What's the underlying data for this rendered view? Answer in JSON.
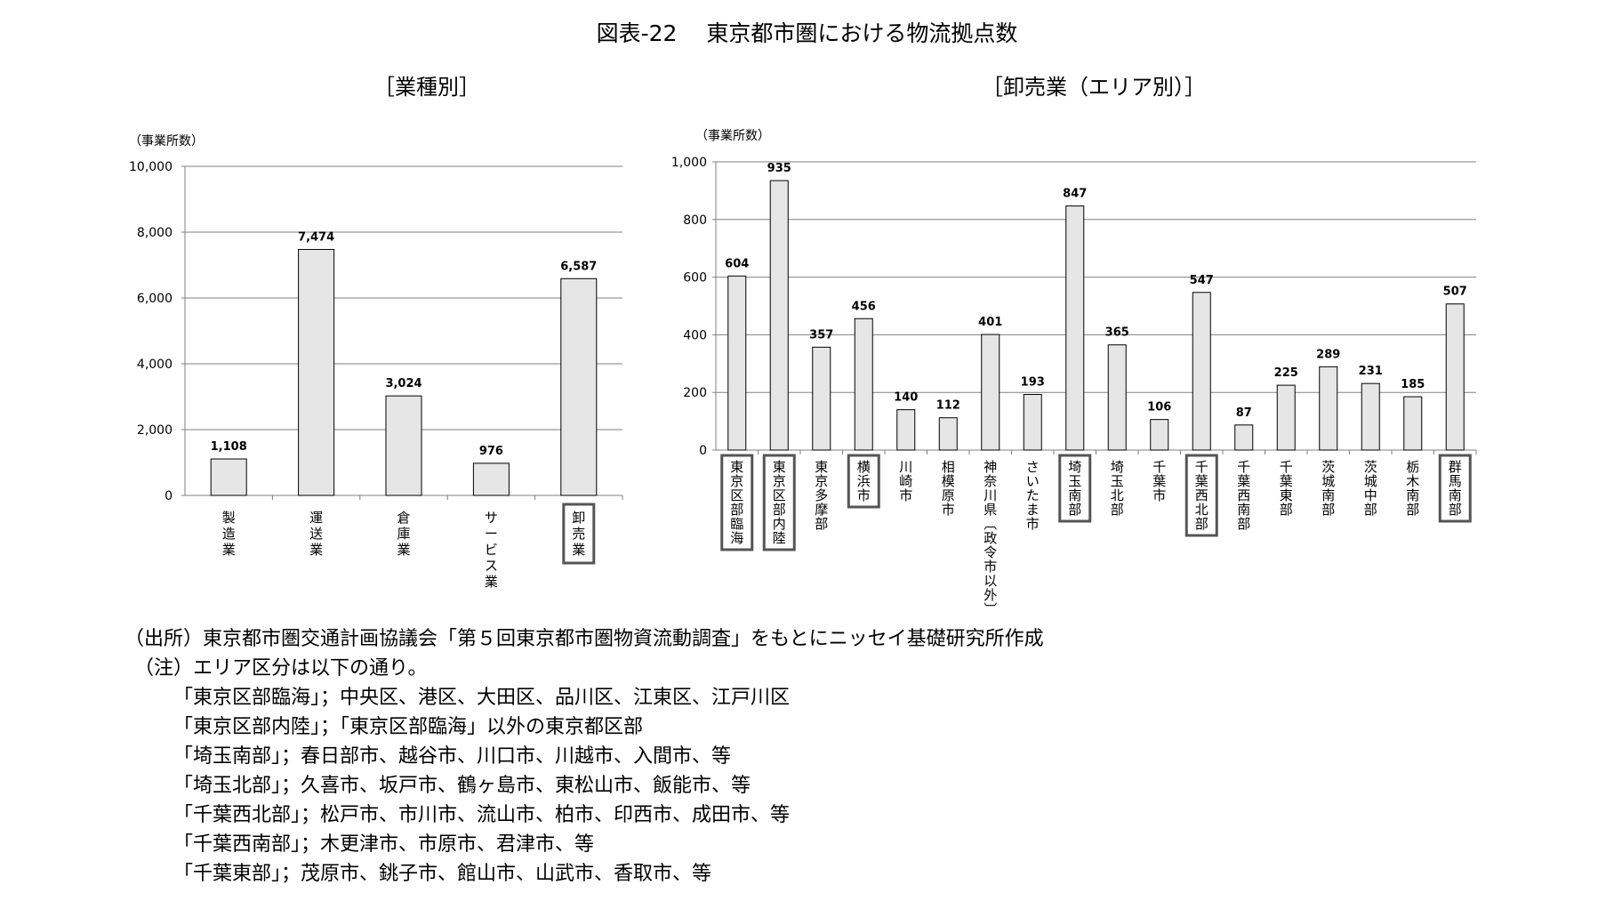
{
  "title": "図表-22　 東京都市圏における物流拠点数",
  "chart_data": [
    {
      "type": "bar",
      "title": "［業種別］",
      "ylabel": "（事業所数）",
      "ylim": [
        0,
        10000
      ],
      "yticks": [
        "0",
        "2,000",
        "4,000",
        "6,000",
        "8,000",
        "10,000"
      ],
      "categories": [
        "製造業",
        "運送業",
        "倉庫業",
        "サービス業",
        "卸売業"
      ],
      "values": [
        1108,
        7474,
        3024,
        976,
        6587
      ],
      "value_labels": [
        "1,108",
        "7,474",
        "3,024",
        "976",
        "6,587"
      ],
      "boxed": [
        false,
        false,
        false,
        false,
        true
      ],
      "grid": true,
      "bar_color": "#e6e6e6"
    },
    {
      "type": "bar",
      "title": "［卸売業（エリア別）］",
      "ylabel": "（事業所数）",
      "ylim": [
        0,
        1000
      ],
      "yticks": [
        "0",
        "200",
        "400",
        "600",
        "800",
        "1,000"
      ],
      "categories": [
        "東京区部臨海",
        "東京区部内陸",
        "東京多摩部",
        "横浜市",
        "川崎市",
        "相模原市",
        "神奈川県︹政令市以外︺",
        "さいたま市",
        "埼玉南部",
        "埼玉北部",
        "千葉市",
        "千葉西北部",
        "千葉西南部",
        "千葉東部",
        "茨城南部",
        "茨城中部",
        "栃木南部",
        "群馬南部"
      ],
      "values": [
        604,
        935,
        357,
        456,
        140,
        112,
        401,
        193,
        847,
        365,
        106,
        547,
        87,
        225,
        289,
        231,
        185,
        507
      ],
      "value_labels": [
        "604",
        "935",
        "357",
        "456",
        "140",
        "112",
        "401",
        "193",
        "847",
        "365",
        "106",
        "547",
        "87",
        "225",
        "289",
        "231",
        "185",
        "507"
      ],
      "boxed": [
        true,
        true,
        false,
        true,
        false,
        false,
        false,
        false,
        true,
        false,
        false,
        true,
        false,
        false,
        false,
        false,
        false,
        true
      ],
      "grid": true,
      "bar_color": "#e6e6e6"
    }
  ],
  "notes": [
    "（出所）東京都市圏交通計画協議会「第５回東京都市圏物資流動調査」をもとにニッセイ基礎研究所作成",
    "　（注）エリア区分は以下の通り。",
    "　　　「東京区部臨海」；中央区、港区、大田区、品川区、江東区、江戸川区",
    "　　　「東京区部内陸」；「東京区部臨海」以外の東京都区部",
    "　　　「埼玉南部」；春日部市、越谷市、川口市、川越市、入間市、等",
    "　　　「埼玉北部」；久喜市、坂戸市、鶴ヶ島市、東松山市、飯能市、等",
    "　　　「千葉西北部」；松戸市、市川市、流山市、柏市、印西市、成田市、等",
    "　　　「千葉西南部」；木更津市、市原市、君津市、等",
    "　　　「千葉東部」；茂原市、銚子市、館山市、山武市、香取市、等"
  ]
}
